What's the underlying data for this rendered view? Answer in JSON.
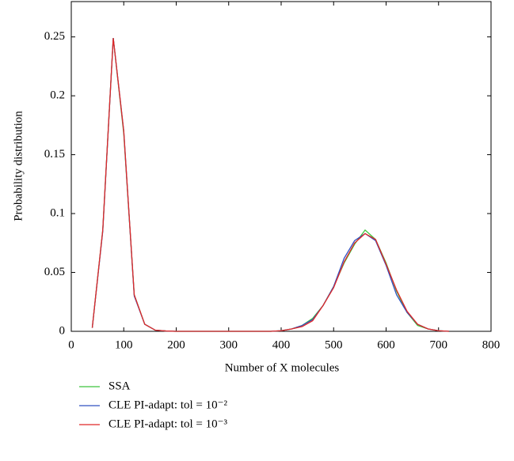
{
  "chart_data": {
    "type": "line",
    "xlabel": "Number of X molecules",
    "ylabel": "Probability distribution",
    "x": [
      40,
      60,
      80,
      100,
      120,
      140,
      160,
      180,
      200,
      220,
      240,
      260,
      280,
      300,
      320,
      340,
      360,
      380,
      400,
      420,
      440,
      460,
      480,
      500,
      520,
      540,
      560,
      580,
      600,
      620,
      640,
      660,
      680,
      700,
      720
    ],
    "series": [
      {
        "name": "SSA",
        "color": "#3cc43c",
        "values": [
          0.003,
          0.086,
          0.249,
          0.168,
          0.031,
          0.006,
          0.001,
          0.0003,
          0,
          0,
          0,
          0,
          0,
          0,
          0,
          0,
          0,
          0,
          0.0005,
          0.002,
          0.005,
          0.011,
          0.022,
          0.038,
          0.058,
          0.074,
          0.086,
          0.078,
          0.058,
          0.034,
          0.016,
          0.005,
          0.002,
          0.0005,
          0
        ]
      },
      {
        "name": "CLE PI-adapt: tol = 10⁻²",
        "color": "#3050c0",
        "values": [
          0.003,
          0.085,
          0.249,
          0.17,
          0.03,
          0.006,
          0.001,
          0.0003,
          0,
          0,
          0,
          0,
          0,
          0,
          0,
          0,
          0,
          0,
          0.0005,
          0.002,
          0.005,
          0.01,
          0.022,
          0.038,
          0.062,
          0.077,
          0.083,
          0.077,
          0.056,
          0.031,
          0.016,
          0.006,
          0.002,
          0.0005,
          0
        ]
      },
      {
        "name": "CLE PI-adapt: tol = 10⁻³",
        "color": "#e02828",
        "values": [
          0.003,
          0.086,
          0.249,
          0.17,
          0.031,
          0.006,
          0.001,
          0.0003,
          0,
          0,
          0,
          0,
          0,
          0,
          0,
          0,
          0,
          0,
          0.0005,
          0.002,
          0.004,
          0.009,
          0.022,
          0.037,
          0.059,
          0.075,
          0.083,
          0.078,
          0.057,
          0.035,
          0.017,
          0.006,
          0.002,
          0.0005,
          0
        ]
      }
    ],
    "xlim": [
      0,
      800
    ],
    "xticks": [
      0,
      100,
      200,
      300,
      400,
      500,
      600,
      700,
      800
    ],
    "ylim": [
      0,
      0.28
    ],
    "yticks": [
      0,
      0.05,
      0.1,
      0.15,
      0.2,
      0.25
    ]
  }
}
